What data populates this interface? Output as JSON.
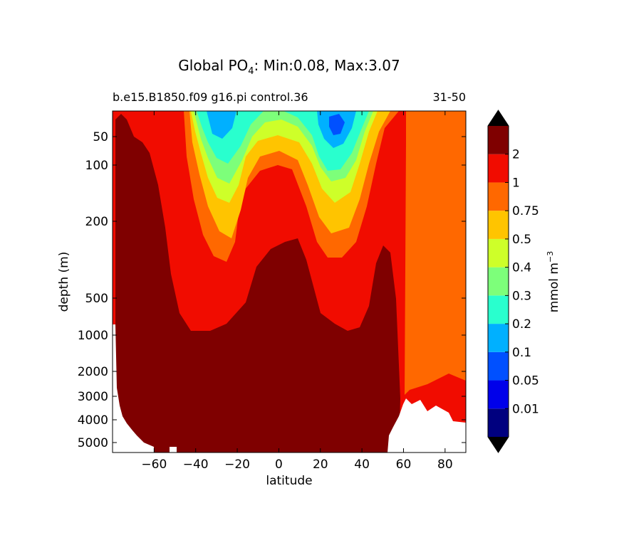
{
  "chart_data": {
    "type": "contour",
    "title": {
      "prefix": "Global PO",
      "subscript": "4",
      "suffix": ": Min:0.08, Max:3.07"
    },
    "subtitle_left": "b.e15.B1850.f09 g16.pi control.36",
    "subtitle_right": "31-50",
    "xlabel": "latitude",
    "ylabel": "depth (m)",
    "xlim": [
      -80,
      90
    ],
    "x_ticks": [
      -60,
      -40,
      -20,
      0,
      20,
      40,
      60,
      80
    ],
    "x_tick_labels": [
      "−60",
      "−40",
      "−20",
      "0",
      "20",
      "40",
      "60",
      "80"
    ],
    "ylim": [
      0,
      5500
    ],
    "y_scale": "nonlinear (depth-stretched), inverted",
    "y_ticks": [
      50,
      100,
      200,
      500,
      1000,
      2000,
      3000,
      4000,
      5000
    ],
    "y_tick_labels": [
      "50",
      "100",
      "200",
      "500",
      "1000",
      "2000",
      "3000",
      "4000",
      "5000"
    ],
    "colorbar": {
      "label": "mmol m",
      "label_exponent": "−3",
      "extend": "both",
      "levels": [
        0.01,
        0.05,
        0.1,
        0.2,
        0.3,
        0.4,
        0.5,
        0.75,
        1,
        2
      ],
      "tick_labels": [
        "0.01",
        "0.05",
        "0.1",
        "0.2",
        "0.3",
        "0.4",
        "0.5",
        "0.75",
        "1",
        "2"
      ],
      "colors": [
        "#00007f",
        "#0000ea",
        "#0050ff",
        "#00b0ff",
        "#29ffce",
        "#7dff7a",
        "#ceff29",
        "#ffc400",
        "#ff6800",
        "#f10c00",
        "#7f0000"
      ],
      "extend_min_color": "#000000",
      "extend_max_color": "#000000"
    },
    "grid": false,
    "missing_color": "#ffffff"
  }
}
